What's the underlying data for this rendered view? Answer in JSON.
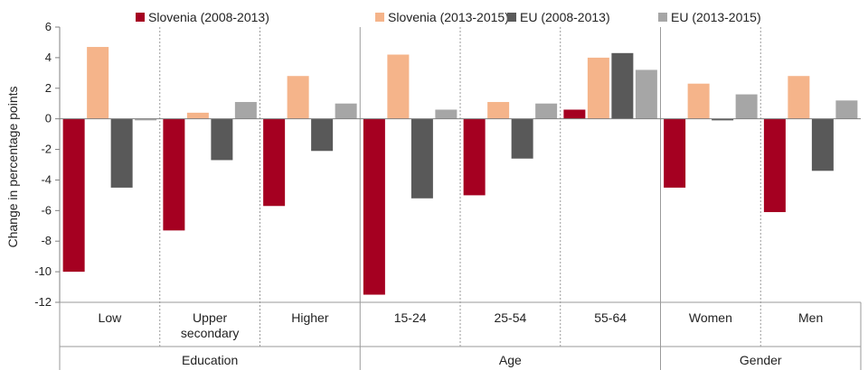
{
  "chart_data": {
    "type": "bar",
    "ylabel": "Change in percentage points",
    "ylim": [
      -12,
      6
    ],
    "yticks": [
      6,
      4,
      2,
      0,
      -2,
      -4,
      -6,
      -8,
      -10,
      -12
    ],
    "grid": false,
    "legend_placement": "top",
    "categories": [
      [
        "Low"
      ],
      [
        "Upper",
        "secondary"
      ],
      [
        "Higher"
      ],
      [
        "15-24"
      ],
      [
        "25-54"
      ],
      [
        "55-64"
      ],
      [
        "Women"
      ],
      [
        "Men"
      ]
    ],
    "groups": [
      {
        "label": "Education",
        "span": 3
      },
      {
        "label": "Age",
        "span": 3
      },
      {
        "label": "Gender",
        "span": 2
      }
    ],
    "series": [
      {
        "name": "Slovenia (2008-2013)",
        "color": "#a50021",
        "values": [
          -10.0,
          -7.3,
          -5.7,
          -11.5,
          -5.0,
          0.6,
          -4.5,
          -6.1
        ]
      },
      {
        "name": "Slovenia (2013-2015)",
        "color": "#f5b48a",
        "values": [
          4.7,
          0.4,
          2.8,
          4.2,
          1.1,
          4.0,
          2.3,
          2.8
        ]
      },
      {
        "name": "EU (2008-2013)",
        "color": "#595959",
        "values": [
          -4.5,
          -2.7,
          -2.1,
          -5.2,
          -2.6,
          4.3,
          -0.1,
          -3.4
        ]
      },
      {
        "name": "EU (2013-2015)",
        "color": "#a6a6a6",
        "values": [
          -0.1,
          1.1,
          1.0,
          0.6,
          1.0,
          3.2,
          1.6,
          1.2
        ]
      }
    ]
  }
}
